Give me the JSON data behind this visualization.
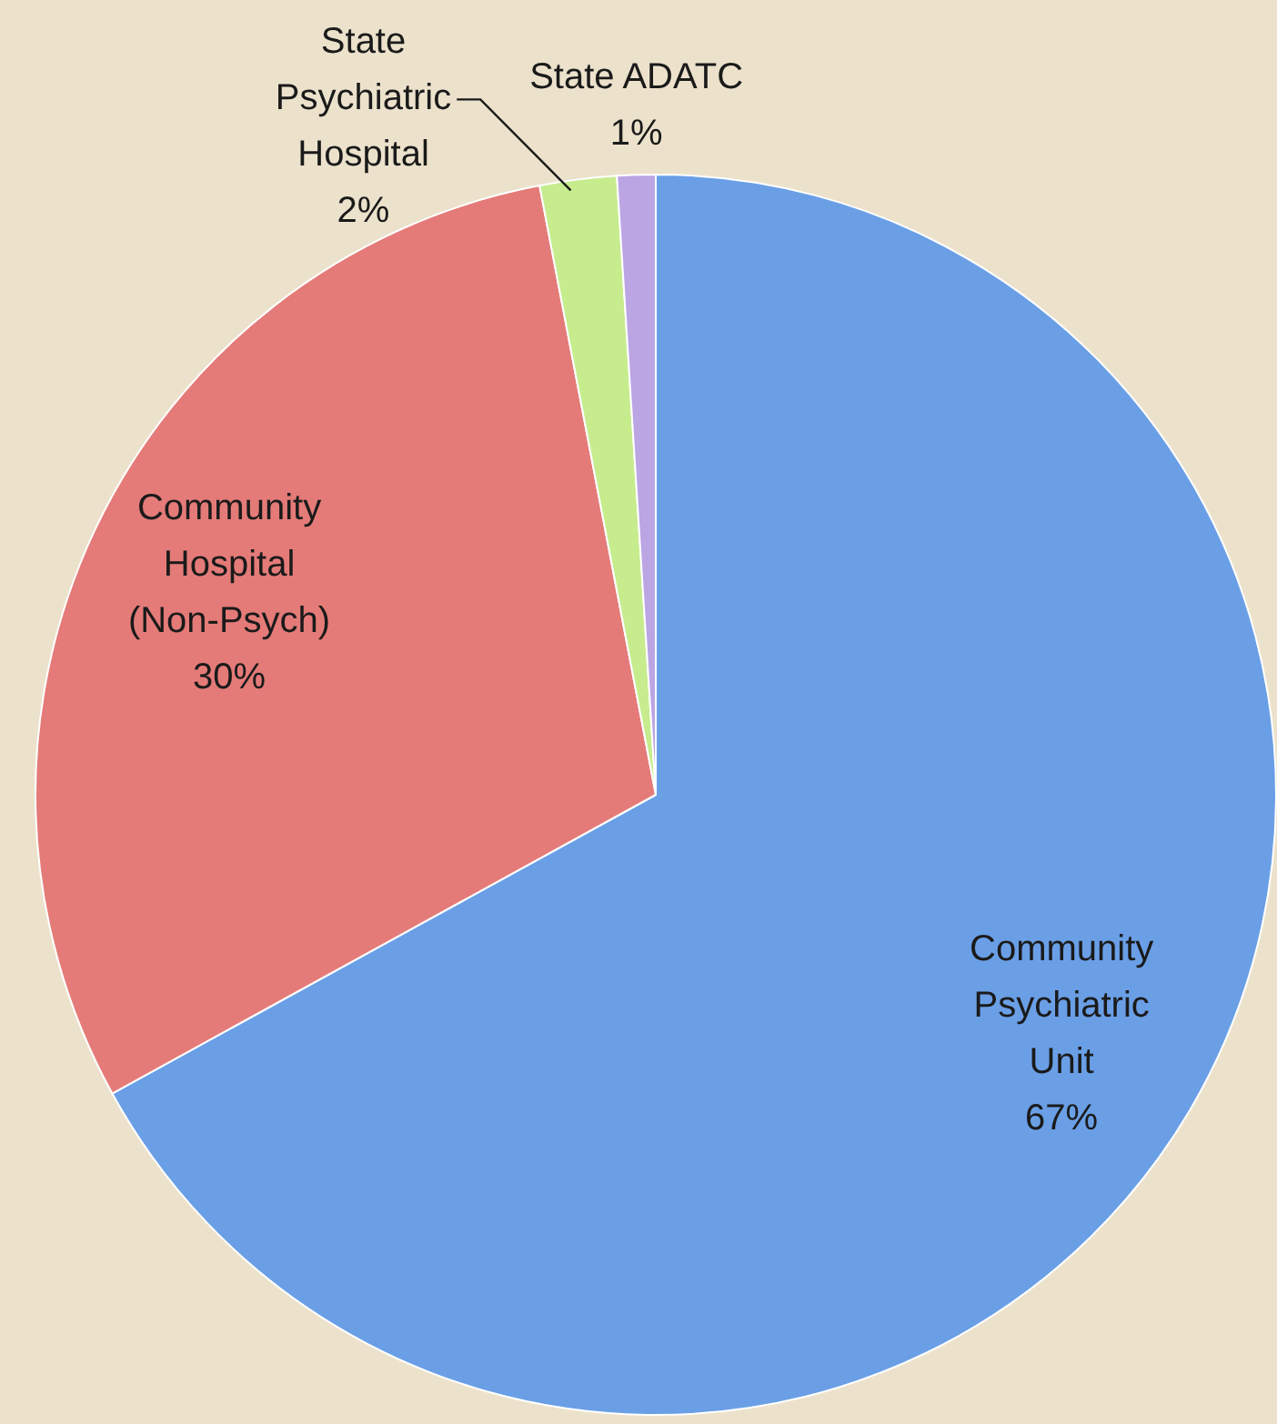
{
  "chart_data": {
    "type": "pie",
    "categories": [
      "Community Psychiatric Unit",
      "Community Hospital (Non-Psych)",
      "State Psychiatric Hospital",
      "State ADATC"
    ],
    "values": [
      67,
      30,
      2,
      1
    ],
    "colors": [
      "#6a9fe6",
      "#e47b78",
      "#c6ec8e",
      "#bba5e3"
    ],
    "value_labels": [
      "67%",
      "30%",
      "2%",
      "1%"
    ]
  }
}
